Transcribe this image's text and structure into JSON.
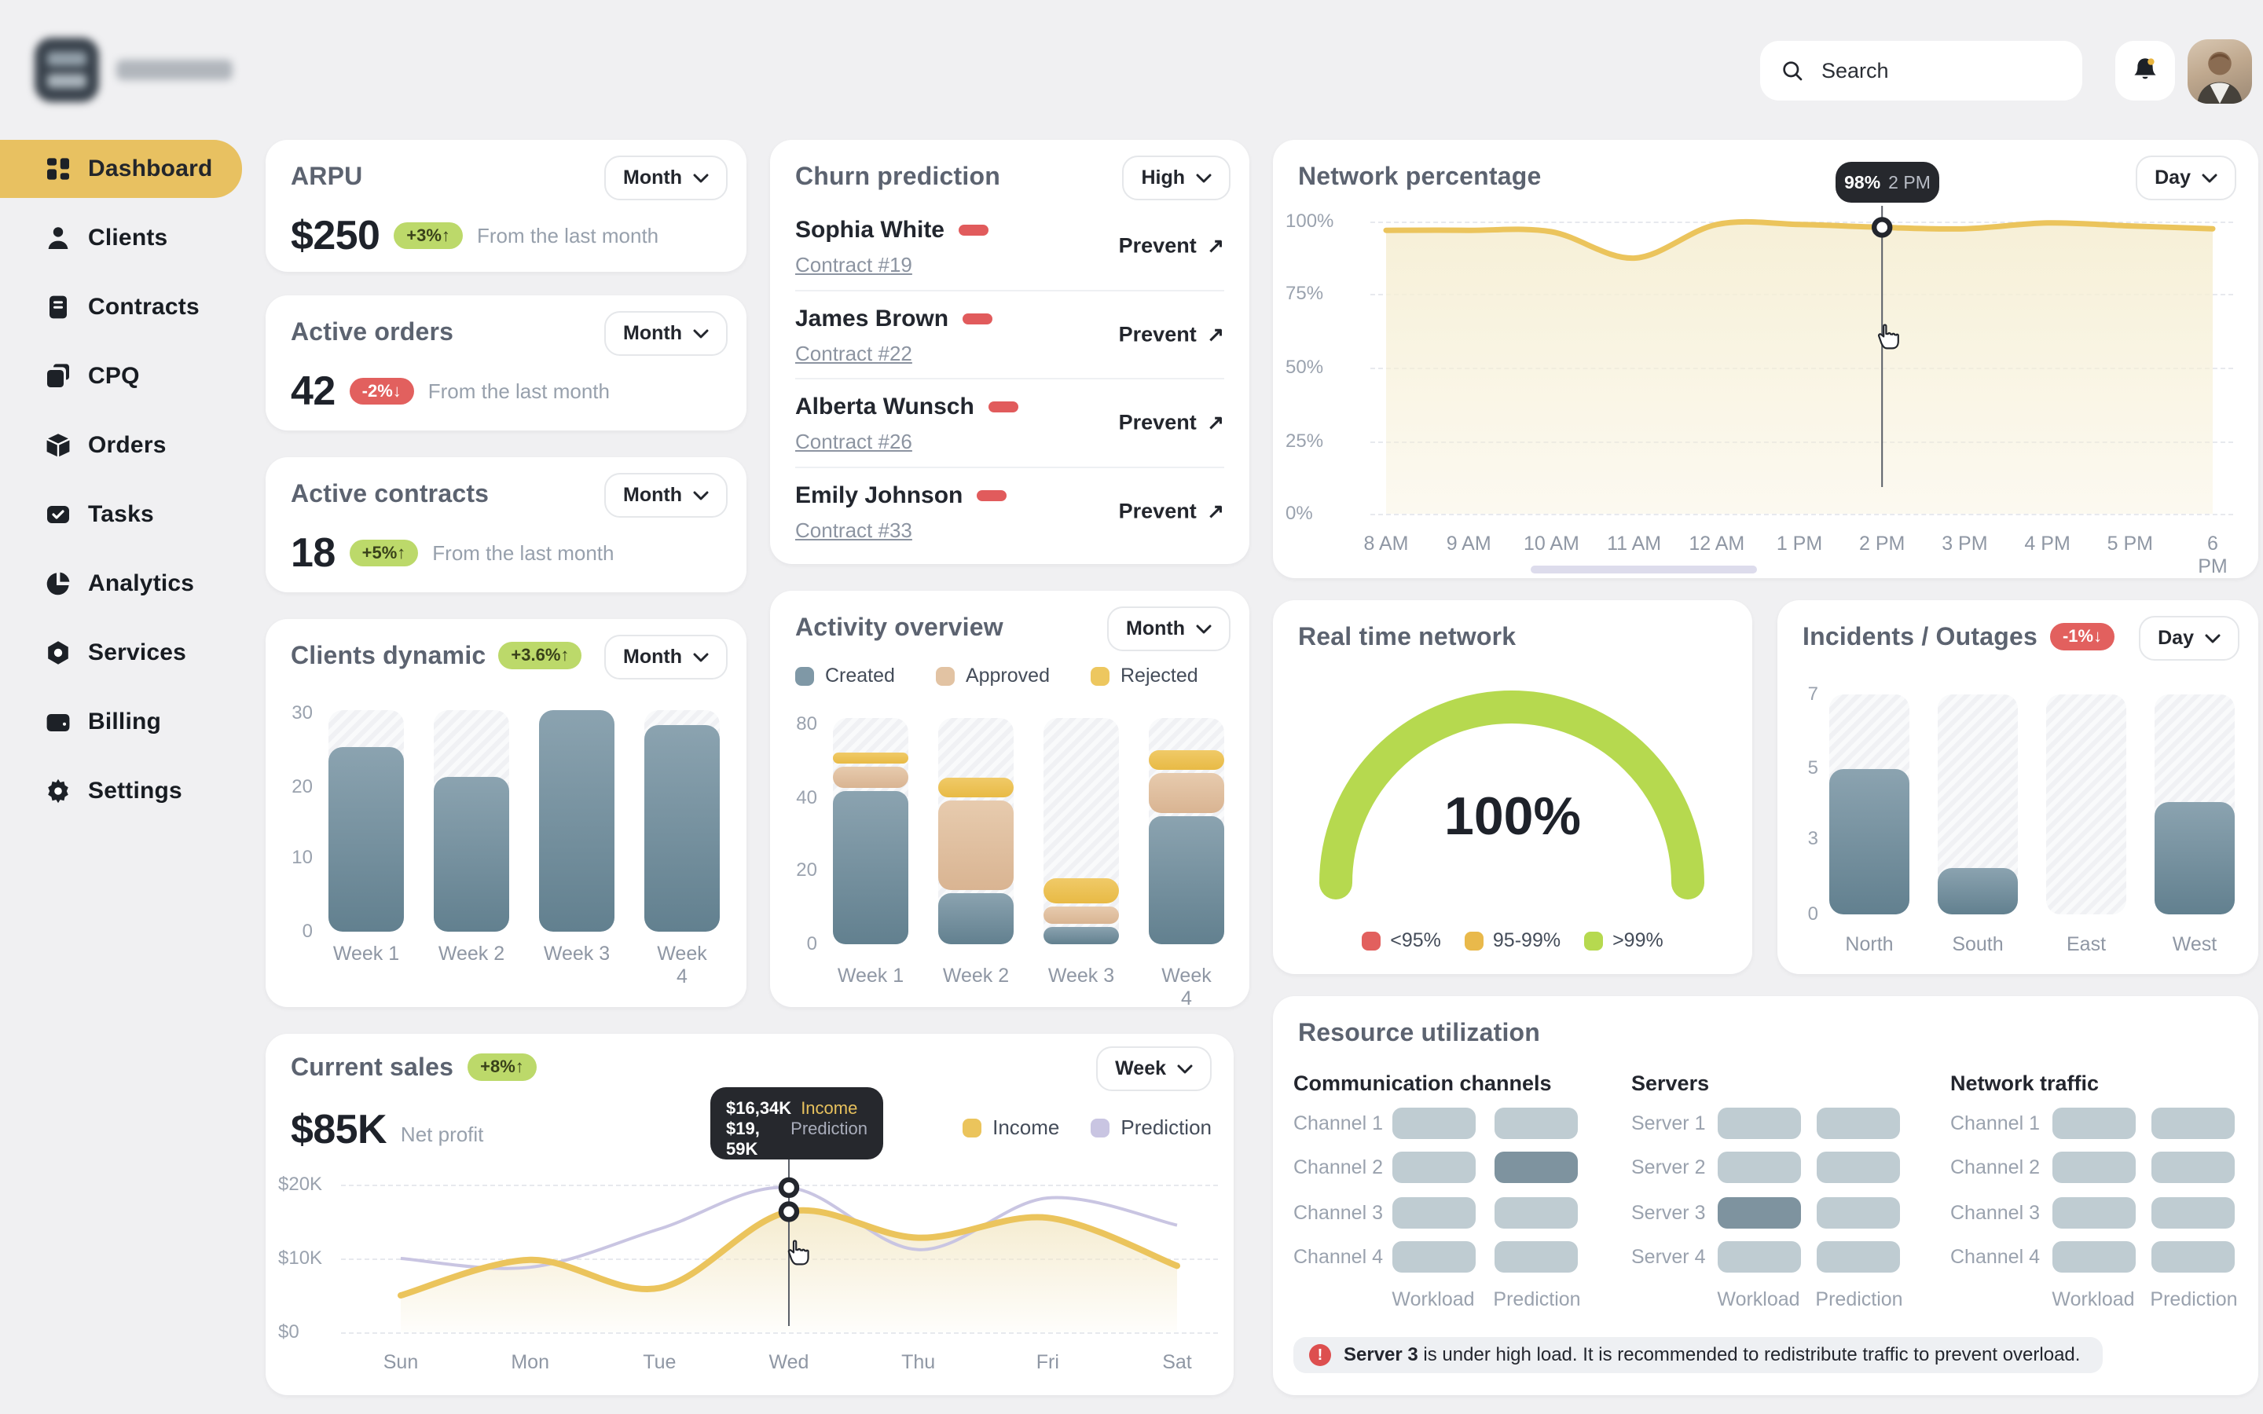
{
  "topbar": {
    "search_placeholder": "Search"
  },
  "sidebar": {
    "items": [
      {
        "id": "dashboard",
        "label": "Dashboard",
        "icon": "dashboard-grid-icon",
        "active": true
      },
      {
        "id": "clients",
        "label": "Clients",
        "icon": "person-icon",
        "active": false
      },
      {
        "id": "contracts",
        "label": "Contracts",
        "icon": "document-icon",
        "active": false
      },
      {
        "id": "cpq",
        "label": "CPQ",
        "icon": "layers-icon",
        "active": false
      },
      {
        "id": "orders",
        "label": "Orders",
        "icon": "box-icon",
        "active": false
      },
      {
        "id": "tasks",
        "label": "Tasks",
        "icon": "task-check-icon",
        "active": false
      },
      {
        "id": "analytics",
        "label": "Analytics",
        "icon": "pie-chart-icon",
        "active": false
      },
      {
        "id": "services",
        "label": "Services",
        "icon": "hexagon-nut-icon",
        "active": false
      },
      {
        "id": "billing",
        "label": "Billing",
        "icon": "wallet-icon",
        "active": false
      },
      {
        "id": "settings",
        "label": "Settings",
        "icon": "gear-icon",
        "active": false
      }
    ]
  },
  "kpis": {
    "arpu": {
      "title": "ARPU",
      "period": "Month",
      "value": "$250",
      "badge": "+3%↑",
      "trend": "up",
      "note": "From the last month"
    },
    "orders": {
      "title": "Active orders",
      "period": "Month",
      "value": "42",
      "badge": "-2%↓",
      "trend": "down",
      "note": "From the last month"
    },
    "contracts": {
      "title": "Active contracts",
      "period": "Month",
      "value": "18",
      "badge": "+5%↑",
      "trend": "up",
      "note": "From the last month"
    }
  },
  "clients_dynamic": {
    "title": "Clients dynamic",
    "badge": "+3.6%↑",
    "trend": "up",
    "period": "Month",
    "chart": {
      "type": "bar",
      "y_ticks": [
        "30",
        "20",
        "10",
        "0"
      ],
      "max": 30,
      "categories": [
        "Week 1",
        "Week 2",
        "Week 3",
        "Week 4"
      ],
      "values": [
        25,
        21,
        30,
        28
      ]
    }
  },
  "churn": {
    "title": "Churn prediction",
    "filter": "High",
    "action_label": "Prevent",
    "rows": [
      {
        "name": "Sophia White",
        "contract": "Contract #19"
      },
      {
        "name": "James Brown",
        "contract": "Contract #22"
      },
      {
        "name": "Alberta Wunsch",
        "contract": "Contract #26"
      },
      {
        "name": "Emily Johnson",
        "contract": "Contract #33"
      }
    ]
  },
  "activity": {
    "title": "Activity overview",
    "period": "Month",
    "chart": {
      "type": "stacked-bar",
      "y_ticks": [
        "80",
        "40",
        "20",
        "0"
      ],
      "categories": [
        "Week 1",
        "Week 2",
        "Week 3",
        "Week 4"
      ],
      "series": [
        {
          "name": "Created",
          "color": "#7f98a6",
          "values": [
            55,
            19,
            7,
            46
          ],
          "pct": [
            69,
            24,
            9,
            58
          ]
        },
        {
          "name": "Approved",
          "color": "#e2c3a3",
          "values": [
            9,
            33,
            7,
            15
          ],
          "pct": [
            11,
            41,
            9,
            19
          ]
        },
        {
          "name": "Rejected",
          "color": "#edc75f",
          "values": [
            5,
            8,
            10,
            8
          ],
          "pct": [
            6,
            10,
            12.5,
            10
          ]
        }
      ]
    }
  },
  "current_sales": {
    "title": "Current sales",
    "badge": "+8%↑",
    "trend": "up",
    "period": "Week",
    "value": "$85K",
    "value_label": "Net profit",
    "legend": [
      {
        "label": "Income",
        "color": "#ebc45c"
      },
      {
        "label": "Prediction",
        "color": "#c9c5e2"
      }
    ],
    "chart": {
      "type": "line",
      "y_ticks": [
        "$20K",
        "$10K",
        "$0"
      ],
      "x_labels": [
        "Sun",
        "Mon",
        "Tue",
        "Wed",
        "Thu",
        "Fri",
        "Sat"
      ],
      "series": [
        {
          "name": "Income",
          "color": "#ebc45c",
          "values": [
            5,
            9.8,
            6,
            16.34,
            12.8,
            15.5,
            9
          ]
        },
        {
          "name": "Prediction",
          "color": "#c9c5e2",
          "values": [
            10,
            8.8,
            14,
            19.59,
            11.2,
            18.2,
            14.5
          ]
        }
      ],
      "highlight_label": "Wed"
    },
    "tooltip": {
      "row1_value": "$16,34K",
      "row1_label": "Income",
      "row2_value": "$19, 59K",
      "row2_label": "Prediction"
    }
  },
  "network": {
    "title": "Network percentage",
    "period": "Day",
    "chart": {
      "type": "line",
      "y_ticks": [
        "100%",
        "75%",
        "50%",
        "25%",
        "0%"
      ],
      "x_labels": [
        "8 AM",
        "9 AM",
        "10 AM",
        "11 AM",
        "12 AM",
        "1 PM",
        "2 PM",
        "3 PM",
        "4 PM",
        "5 PM",
        "6 PM"
      ],
      "values": [
        97,
        97,
        96.5,
        87.5,
        99,
        99,
        98,
        97.5,
        99.5,
        98.5,
        97.5
      ],
      "highlight_index": 6
    },
    "tooltip": {
      "value": "98%",
      "label": "2 PM"
    }
  },
  "realtime": {
    "title": "Real time network",
    "value": "100%",
    "legend": [
      {
        "label": "<95%",
        "color": "#e2605e"
      },
      {
        "label": "95-99%",
        "color": "#e9b94b"
      },
      {
        "label": ">99%",
        "color": "#b6d94f"
      }
    ]
  },
  "incidents": {
    "title": "Incidents / Outages",
    "badge": "-1%↓",
    "trend": "down",
    "period": "Day",
    "chart": {
      "type": "bar",
      "y_ticks": [
        "7",
        "5",
        "3",
        "0"
      ],
      "categories": [
        "North",
        "South",
        "East",
        "West"
      ],
      "values": [
        5,
        2,
        0,
        4
      ],
      "pct": [
        66,
        21,
        0,
        51
      ]
    }
  },
  "resource": {
    "title": "Resource utilization",
    "columns": [
      "Workload",
      "Prediction"
    ],
    "groups": [
      {
        "title": "Communication channels",
        "rows": [
          "Channel 1",
          "Channel 2",
          "Channel 3",
          "Channel 4"
        ],
        "highlight": {
          "row": 1,
          "col": 1
        }
      },
      {
        "title": "Servers",
        "rows": [
          "Server 1",
          "Server 2",
          "Server 3",
          "Server 4"
        ],
        "highlight": {
          "row": 2,
          "col": 0
        }
      },
      {
        "title": "Network traffic",
        "rows": [
          "Channel 1",
          "Channel 2",
          "Channel 3",
          "Channel 4"
        ],
        "highlight": null
      }
    ],
    "alert": {
      "bold": "Server 3",
      "text": "is under high load. It is recommended to redistribute traffic to prevent overload."
    }
  },
  "colors": {
    "sidebar_active": "#e8c161",
    "bar_top": "#8ba3b0",
    "bar_bottom": "#62808f",
    "income_yellow": "#ebc45c",
    "prediction_lavender": "#c9c5e2",
    "badge_up_bg": "#bcd96a",
    "badge_down_bg": "#e2605e",
    "gauge_green": "#b6d94f",
    "risk_red": "#e15b5c"
  }
}
